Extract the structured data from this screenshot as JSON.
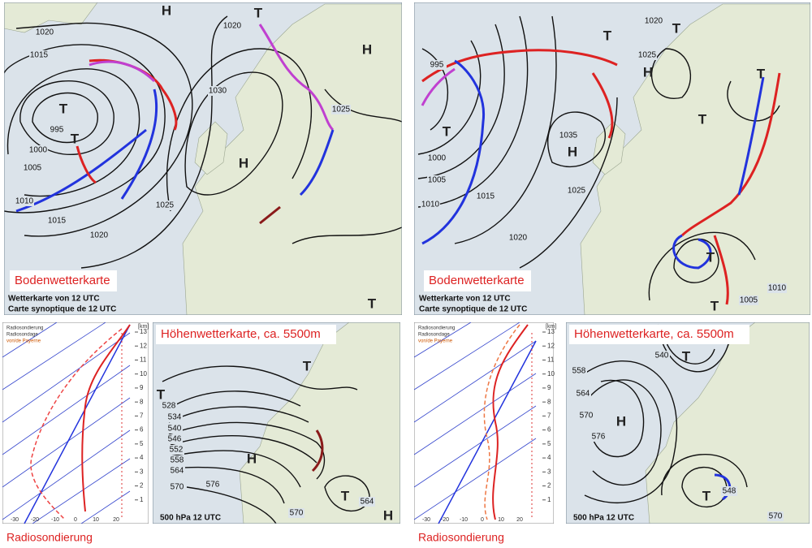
{
  "left": {
    "surface": {
      "title": "Bodenwetterkarte",
      "caption": [
        "Wetterkarte von 12 UTC",
        "Carte synoptique de 12 UTC"
      ],
      "centers": [
        "T",
        "T",
        "H",
        "T",
        "H",
        "H",
        "T"
      ],
      "isobars": [
        1020,
        1015,
        995,
        1000,
        1005,
        1010,
        1015,
        1020,
        1025,
        1030,
        1025,
        1020
      ]
    },
    "upper": {
      "title": "Höhenwetterkarte, ca. 5500m",
      "caption": "500 hPa 12 UTC",
      "centers": [
        "T",
        "T",
        "H",
        "T",
        "H"
      ],
      "heights": [
        528,
        534,
        540,
        546,
        552,
        558,
        564,
        570,
        576,
        564,
        570
      ]
    },
    "sounding": {
      "label": "Radiosondierung",
      "legend": [
        "Radiosondierung",
        "Radiosondage",
        "von/de Payerne"
      ],
      "km_unit": "[km]",
      "km_ticks": [
        1,
        2,
        3,
        4,
        5,
        6,
        7,
        8,
        9,
        10,
        11,
        12,
        13
      ],
      "temp_ticks": [
        -30,
        -20,
        -10,
        0,
        10,
        20
      ]
    }
  },
  "right": {
    "surface": {
      "title": "Bodenwetterkarte",
      "caption": [
        "Wetterkarte von 12 UTC",
        "Carte synoptique de 12 UTC"
      ],
      "centers": [
        "T",
        "T",
        "T",
        "H",
        "H",
        "T",
        "T",
        "T",
        "T"
      ],
      "isobars": [
        995,
        1000,
        1005,
        1010,
        1015,
        1020,
        1025,
        1035,
        1020,
        1025,
        1010,
        1005
      ]
    },
    "upper": {
      "title": "Höhenwetterkarte, ca. 5500m",
      "caption": "500 hPa 12 UTC",
      "centers": [
        "T",
        "H",
        "T"
      ],
      "heights": [
        540,
        558,
        564,
        570,
        576,
        548,
        570
      ]
    },
    "sounding": {
      "label": "Radiosondierung",
      "legend": [
        "Radiosondierung",
        "Radiosondage",
        "von/de Payerne"
      ],
      "km_unit": "[km]",
      "km_ticks": [
        1,
        2,
        3,
        4,
        5,
        6,
        7,
        8,
        9,
        10,
        11,
        12,
        13
      ],
      "temp_ticks": [
        -30,
        -20,
        -10,
        0,
        10,
        20
      ]
    }
  }
}
